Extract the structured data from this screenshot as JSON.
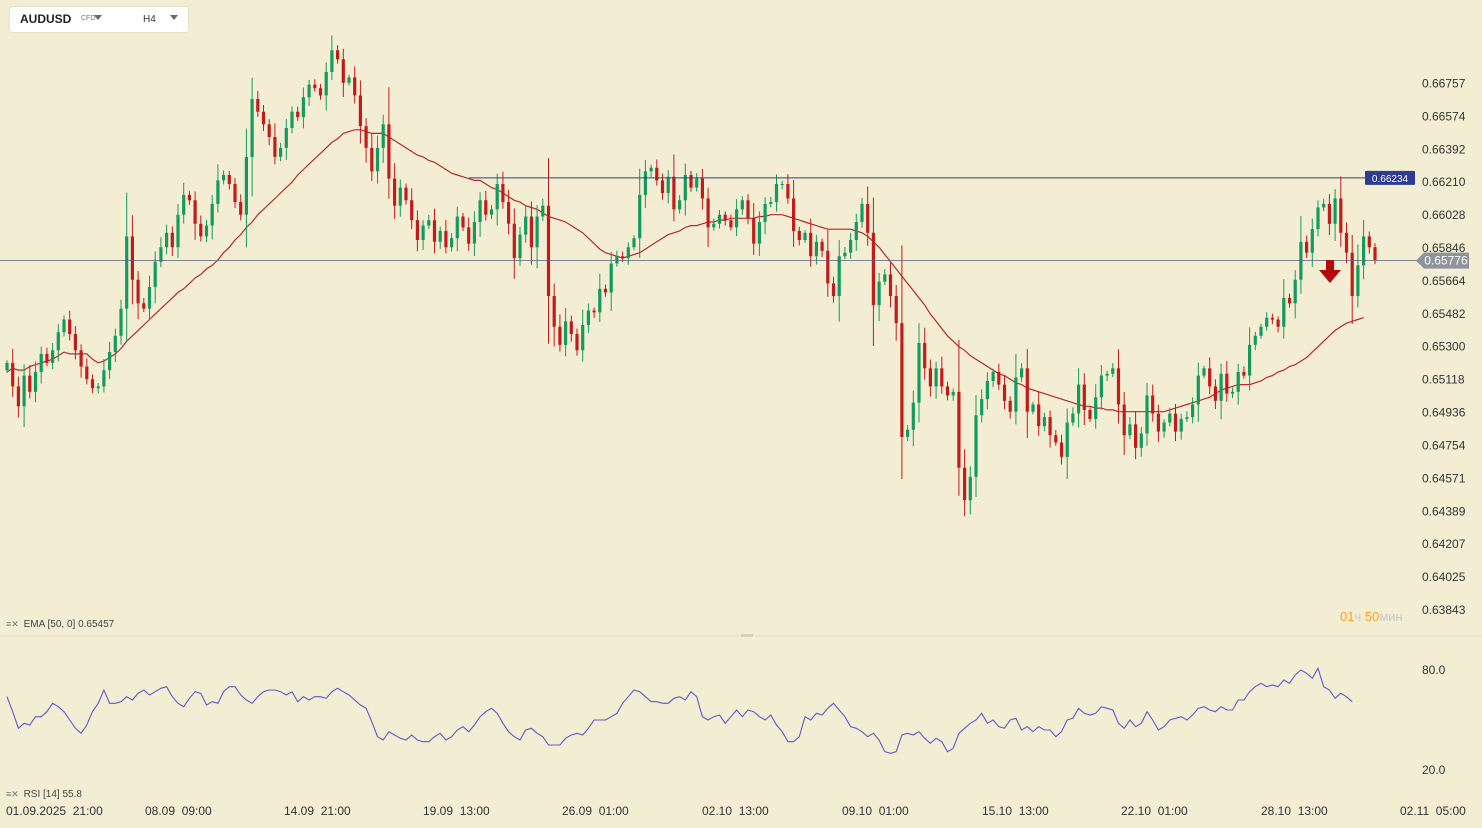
{
  "header": {
    "symbol": "AUDUSD",
    "instrument_type": "CFD",
    "timeframe": "H4"
  },
  "indicators": {
    "ema_label": "EMA",
    "ema_params": "[50, 0]",
    "ema_value": "0.65457",
    "rsi_label": "RSI",
    "rsi_params": "[14]",
    "rsi_value": "55.8"
  },
  "countdown": {
    "hours": "01",
    "hours_unit": "ч",
    "minutes": "50",
    "minutes_unit": "мин"
  },
  "colors": {
    "background": "#f3eed3",
    "bull": "#149a5c",
    "bear": "#c31a1a",
    "ema": "#b52a2a",
    "rsi": "#6a55c8",
    "resistance": "#2e3c93",
    "current_price_line": "#56617a",
    "signal_arrow": "#b40a0a",
    "axis_text": "#333333"
  },
  "signal_icon": "down-arrow-icon",
  "chart_data": [
    {
      "type": "candlestick",
      "title": "AUDUSD H4",
      "y_ticks": [
        "0.66757",
        "0.66574",
        "0.66392",
        "0.66210",
        "0.66028",
        "0.65846",
        "0.65664",
        "0.65482",
        "0.65300",
        "0.65118",
        "0.64936",
        "0.64754",
        "0.64571",
        "0.64389",
        "0.64207",
        "0.64025",
        "0.63843"
      ],
      "x_ticks": [
        "01.09.2025  21:00",
        "08.09  09:00",
        "14.09  21:00",
        "19.09  13:00",
        "26.09  01:00",
        "02.10  13:00",
        "09.10  01:00",
        "15.10  13:00",
        "22.10  01:00",
        "28.10  13:00",
        "02.11  05:00"
      ],
      "ylim": [
        0.6371,
        0.6703
      ],
      "current_price": "0.65776",
      "resistance_price": "0.66234",
      "close": [
        0.6521,
        0.6508,
        0.6497,
        0.6514,
        0.6505,
        0.6516,
        0.6526,
        0.6521,
        0.6528,
        0.6538,
        0.6545,
        0.6537,
        0.6528,
        0.6519,
        0.6512,
        0.6507,
        0.6508,
        0.6517,
        0.6527,
        0.6536,
        0.6551,
        0.6591,
        0.6567,
        0.6554,
        0.6551,
        0.6563,
        0.6577,
        0.6585,
        0.6593,
        0.6585,
        0.6603,
        0.6614,
        0.6611,
        0.6598,
        0.6591,
        0.6597,
        0.6609,
        0.6622,
        0.6625,
        0.662,
        0.661,
        0.6603,
        0.6635,
        0.6667,
        0.666,
        0.6653,
        0.6646,
        0.6635,
        0.664,
        0.6651,
        0.666,
        0.6657,
        0.6668,
        0.6675,
        0.6673,
        0.6669,
        0.6682,
        0.6694,
        0.6689,
        0.6676,
        0.6679,
        0.6669,
        0.6652,
        0.664,
        0.6627,
        0.664,
        0.6653,
        0.6623,
        0.6608,
        0.6618,
        0.6611,
        0.66,
        0.6589,
        0.6597,
        0.66,
        0.6588,
        0.6594,
        0.6585,
        0.659,
        0.6602,
        0.6596,
        0.6587,
        0.6599,
        0.6611,
        0.6603,
        0.6606,
        0.662,
        0.661,
        0.6598,
        0.6579,
        0.6592,
        0.6602,
        0.6585,
        0.6602,
        0.6608,
        0.6558,
        0.6541,
        0.6531,
        0.6544,
        0.6537,
        0.6528,
        0.6542,
        0.655,
        0.6549,
        0.6562,
        0.656,
        0.6576,
        0.658,
        0.6579,
        0.6585,
        0.659,
        0.6614,
        0.6627,
        0.6629,
        0.6622,
        0.6615,
        0.6624,
        0.6606,
        0.6611,
        0.6625,
        0.6618,
        0.6623,
        0.6612,
        0.6596,
        0.6598,
        0.6603,
        0.66,
        0.6596,
        0.6606,
        0.6611,
        0.6601,
        0.6587,
        0.6599,
        0.6609,
        0.661,
        0.662,
        0.662,
        0.6612,
        0.6594,
        0.6589,
        0.6593,
        0.658,
        0.6588,
        0.6583,
        0.6565,
        0.6558,
        0.658,
        0.6582,
        0.6589,
        0.6599,
        0.6609,
        0.6593,
        0.6553,
        0.6566,
        0.657,
        0.6558,
        0.6543,
        0.648,
        0.6484,
        0.6499,
        0.6532,
        0.6518,
        0.6508,
        0.6518,
        0.6508,
        0.6503,
        0.6505,
        0.6463,
        0.6445,
        0.6458,
        0.6492,
        0.6501,
        0.6511,
        0.6516,
        0.6509,
        0.65,
        0.6494,
        0.6513,
        0.6518,
        0.6494,
        0.6498,
        0.6486,
        0.6491,
        0.6481,
        0.6477,
        0.6469,
        0.6488,
        0.6493,
        0.6509,
        0.6495,
        0.649,
        0.6502,
        0.6514,
        0.6515,
        0.6518,
        0.6498,
        0.6481,
        0.6487,
        0.6474,
        0.6482,
        0.6503,
        0.6493,
        0.6483,
        0.6488,
        0.6493,
        0.6483,
        0.649,
        0.6491,
        0.6498,
        0.6514,
        0.6518,
        0.6508,
        0.65,
        0.6515,
        0.6504,
        0.6505,
        0.6516,
        0.6514,
        0.6531,
        0.6536,
        0.6541,
        0.6546,
        0.6545,
        0.6541,
        0.6557,
        0.6554,
        0.6567,
        0.6588,
        0.6582,
        0.6595,
        0.6607,
        0.6609,
        0.6598,
        0.6612,
        0.6593,
        0.6582,
        0.6558,
        0.6575,
        0.6591,
        0.6585,
        0.6578
      ],
      "ema50": [
        0.6516,
        0.6518,
        0.6517,
        0.6517,
        0.6519,
        0.652,
        0.6521,
        0.6522,
        0.6523,
        0.6525,
        0.6527,
        0.6526,
        0.6526,
        0.6526,
        0.6526,
        0.6523,
        0.6521,
        0.6522,
        0.6524,
        0.6526,
        0.6529,
        0.6533,
        0.6536,
        0.6539,
        0.6542,
        0.6545,
        0.6548,
        0.6551,
        0.6554,
        0.6557,
        0.656,
        0.6562,
        0.6565,
        0.6568,
        0.657,
        0.6573,
        0.6575,
        0.6578,
        0.6582,
        0.6585,
        0.6589,
        0.6592,
        0.6596,
        0.6599,
        0.6603,
        0.6606,
        0.6609,
        0.6612,
        0.6615,
        0.6618,
        0.6621,
        0.6625,
        0.6628,
        0.6631,
        0.6634,
        0.6637,
        0.664,
        0.6643,
        0.6645,
        0.6648,
        0.6649,
        0.665,
        0.665,
        0.6649,
        0.6648,
        0.6648,
        0.6648,
        0.6646,
        0.6644,
        0.6642,
        0.664,
        0.6638,
        0.6636,
        0.6635,
        0.6633,
        0.6632,
        0.663,
        0.6628,
        0.6626,
        0.6625,
        0.6624,
        0.6623,
        0.6622,
        0.6622,
        0.662,
        0.6618,
        0.6617,
        0.6615,
        0.6613,
        0.6611,
        0.661,
        0.6608,
        0.6607,
        0.6606,
        0.6604,
        0.6602,
        0.6601,
        0.66,
        0.6599,
        0.6597,
        0.6595,
        0.6593,
        0.659,
        0.6587,
        0.6584,
        0.6582,
        0.6581,
        0.658,
        0.6579,
        0.658,
        0.6581,
        0.6582,
        0.6584,
        0.6586,
        0.6588,
        0.659,
        0.6592,
        0.6593,
        0.6594,
        0.6596,
        0.6597,
        0.6597,
        0.6598,
        0.6599,
        0.6599,
        0.66,
        0.66,
        0.6601,
        0.6601,
        0.6601,
        0.6601,
        0.6601,
        0.6602,
        0.6602,
        0.6603,
        0.6603,
        0.6603,
        0.6602,
        0.6601,
        0.66,
        0.6599,
        0.6598,
        0.6597,
        0.6596,
        0.6595,
        0.6595,
        0.6595,
        0.6595,
        0.6595,
        0.6594,
        0.6593,
        0.6591,
        0.6588,
        0.6585,
        0.6581,
        0.6577,
        0.6573,
        0.6569,
        0.6565,
        0.6561,
        0.6557,
        0.6553,
        0.6548,
        0.6544,
        0.654,
        0.6536,
        0.6533,
        0.653,
        0.6528,
        0.6525,
        0.6523,
        0.6521,
        0.6519,
        0.6517,
        0.6515,
        0.6514,
        0.6512,
        0.651,
        0.6509,
        0.6507,
        0.6506,
        0.6505,
        0.6504,
        0.6503,
        0.6502,
        0.6501,
        0.65,
        0.6499,
        0.6498,
        0.6497,
        0.6497,
        0.6496,
        0.6496,
        0.6495,
        0.6495,
        0.6494,
        0.6494,
        0.6494,
        0.6494,
        0.6494,
        0.6494,
        0.6494,
        0.6494,
        0.6494,
        0.6495,
        0.6496,
        0.6497,
        0.6498,
        0.6499,
        0.65,
        0.6501,
        0.6502,
        0.6504,
        0.6506,
        0.6507,
        0.6508,
        0.6509,
        0.6509,
        0.6509,
        0.651,
        0.6511,
        0.6513,
        0.6514,
        0.6516,
        0.6517,
        0.6519,
        0.652,
        0.6522,
        0.6524,
        0.6527,
        0.653,
        0.6533,
        0.6536,
        0.6539,
        0.6541,
        0.6543,
        0.6544,
        0.6545,
        0.6546
      ],
      "rsi14": [
        64,
        55,
        45,
        48,
        47,
        52,
        52,
        55,
        60,
        58,
        55,
        50,
        45,
        42,
        47,
        55,
        60,
        68,
        60,
        60,
        61,
        64,
        62,
        66,
        68,
        65,
        67,
        69,
        70,
        64,
        60,
        58,
        63,
        67,
        66,
        59,
        61,
        60,
        67,
        70,
        70,
        65,
        62,
        60,
        64,
        67,
        68,
        68,
        67,
        65,
        67,
        61,
        64,
        62,
        64,
        64,
        63,
        67,
        69,
        67,
        65,
        62,
        59,
        57,
        49,
        40,
        38,
        43,
        41,
        39,
        38,
        41,
        38,
        37,
        37,
        40,
        42,
        38,
        40,
        44,
        46,
        43,
        47,
        52,
        55,
        57,
        54,
        48,
        43,
        40,
        38,
        44,
        45,
        42,
        40,
        35,
        35,
        35,
        39,
        41,
        42,
        41,
        45,
        50,
        50,
        50,
        52,
        54,
        60,
        64,
        68,
        67,
        64,
        61,
        61,
        60,
        60,
        63,
        64,
        62,
        67,
        64,
        52,
        50,
        52,
        53,
        48,
        52,
        56,
        52,
        56,
        55,
        52,
        50,
        53,
        47,
        43,
        37,
        37,
        40,
        52,
        50,
        54,
        53,
        57,
        60,
        56,
        52,
        46,
        45,
        43,
        40,
        42,
        38,
        31,
        30,
        31,
        41,
        42,
        41,
        43,
        39,
        36,
        39,
        37,
        31,
        33,
        42,
        45,
        48,
        50,
        54,
        48,
        50,
        46,
        45,
        50,
        51,
        44,
        46,
        43,
        46,
        44,
        44,
        40,
        43,
        50,
        51,
        57,
        54,
        53,
        54,
        58,
        57,
        56,
        48,
        45,
        50,
        46,
        48,
        55,
        50,
        44,
        46,
        50,
        51,
        52,
        50,
        53,
        57,
        58,
        56,
        55,
        58,
        56,
        56,
        62,
        62,
        67,
        70,
        72,
        70,
        71,
        70,
        74,
        72,
        77,
        80,
        78,
        75,
        81,
        70,
        68,
        63,
        66,
        64,
        61
      ],
      "rsi_ticks": [
        "80.0",
        "20.0"
      ]
    }
  ]
}
